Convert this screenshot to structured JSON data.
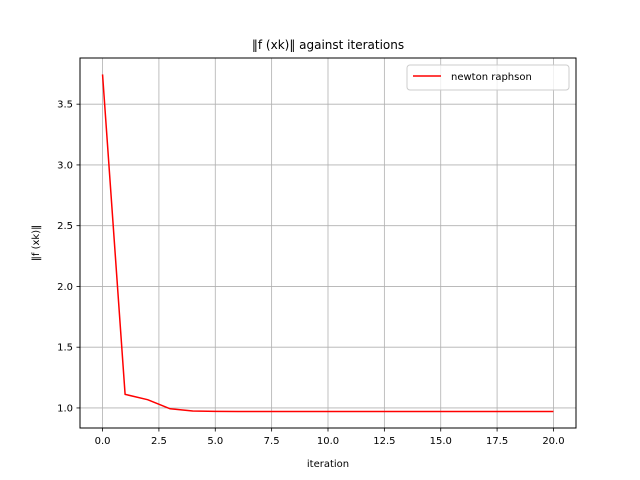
{
  "chart_data": {
    "type": "line",
    "title": "‖f (xk)‖ against iterations",
    "xlabel": "iteration",
    "ylabel": "‖f (xk)‖",
    "xlim": [
      -1.0,
      21.0
    ],
    "ylim": [
      0.835,
      3.88
    ],
    "xticks": [
      0.0,
      2.5,
      5.0,
      7.5,
      10.0,
      12.5,
      15.0,
      17.5,
      20.0
    ],
    "xtick_labels": [
      "0.0",
      "2.5",
      "5.0",
      "7.5",
      "10.0",
      "12.5",
      "15.0",
      "17.5",
      "20.0"
    ],
    "yticks": [
      1.0,
      1.5,
      2.0,
      2.5,
      3.0,
      3.5
    ],
    "ytick_labels": [
      "1.0",
      "1.5",
      "2.0",
      "2.5",
      "3.0",
      "3.5"
    ],
    "grid": true,
    "legend_position": "top-right",
    "series": [
      {
        "name": "newton raphson",
        "color": "#ff0000",
        "x": [
          0,
          1,
          2,
          3,
          4,
          5,
          6,
          7,
          8,
          9,
          10,
          11,
          12,
          13,
          14,
          15,
          16,
          17,
          18,
          19,
          20
        ],
        "y": [
          3.745,
          1.112,
          1.068,
          0.993,
          0.975,
          0.972,
          0.971,
          0.971,
          0.971,
          0.971,
          0.971,
          0.971,
          0.971,
          0.971,
          0.971,
          0.971,
          0.971,
          0.971,
          0.971,
          0.971,
          0.971
        ]
      }
    ]
  }
}
